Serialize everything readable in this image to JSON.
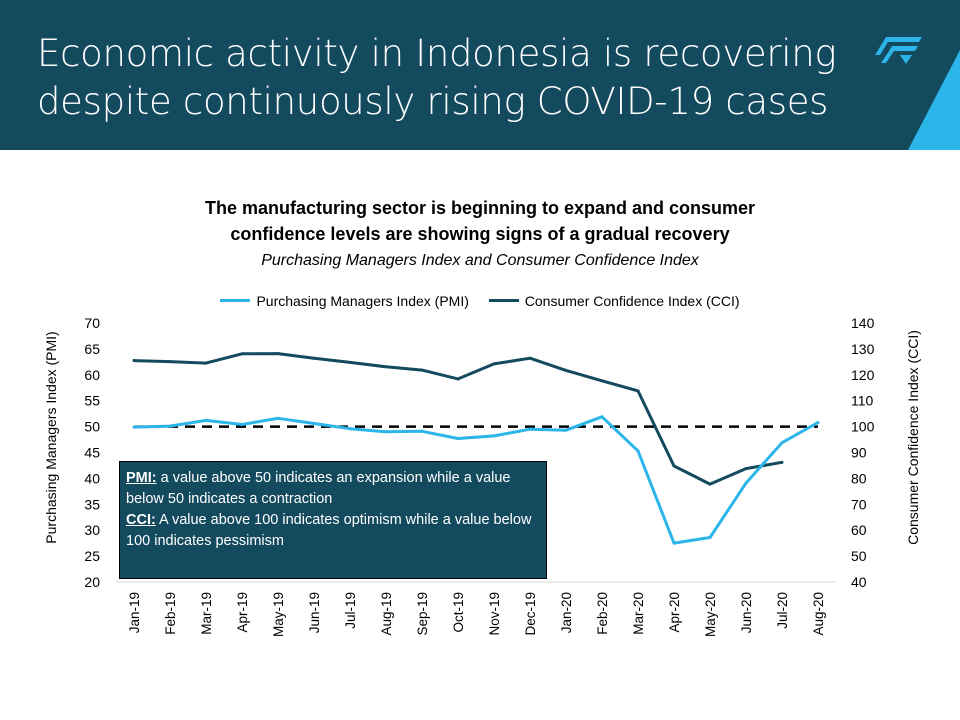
{
  "header": {
    "title_line1": "Economic activity in Indonesia is recovering",
    "title_line2": "despite continuously rising COVID-19 cases",
    "bg_color": "#134a5e",
    "accent_color": "#2bb5e8",
    "logo": "brand-logo"
  },
  "chart_data": {
    "type": "line",
    "title_line1": "The manufacturing sector is beginning to expand and consumer",
    "title_line2": "confidence levels are showing signs of a gradual recovery",
    "subtitle": "Purchasing Managers Index and Consumer Confidence Index",
    "categories": [
      "Jan-19",
      "Feb-19",
      "Mar-19",
      "Apr-19",
      "May-19",
      "Jun-19",
      "Jul-19",
      "Aug-19",
      "Sep-19",
      "Oct-19",
      "Nov-19",
      "Dec-19",
      "Jan-20",
      "Feb-20",
      "Mar-20",
      "Apr-20",
      "May-20",
      "Jun-20",
      "Jul-20",
      "Aug-20"
    ],
    "series": [
      {
        "name": "Purchasing Managers Index (PMI)",
        "axis": "left",
        "color": "#2bb5e8",
        "values": [
          49.9,
          50.1,
          51.2,
          50.4,
          51.6,
          50.6,
          49.6,
          49.0,
          49.1,
          47.7,
          48.2,
          49.5,
          49.3,
          51.9,
          45.3,
          27.5,
          28.6,
          39.1,
          46.9,
          50.8
        ]
      },
      {
        "name": "Consumer Confidence Index (CCI)",
        "axis": "right",
        "color": "#134a5e",
        "values": [
          125.5,
          125.1,
          124.5,
          128.1,
          128.2,
          126.4,
          124.8,
          123.1,
          121.8,
          118.4,
          124.2,
          126.4,
          121.7,
          117.7,
          113.8,
          84.8,
          77.8,
          83.8,
          86.2,
          null
        ]
      }
    ],
    "reference_line": {
      "left_value": 50,
      "right_value": 100,
      "style": "dashed"
    },
    "ylabel_left": "Purchasing Managers Index (PMI)",
    "ylabel_right": "Consumer Confidence Index (CCI)",
    "ylim_left": [
      20,
      70
    ],
    "yticks_left": [
      20,
      25,
      30,
      35,
      40,
      45,
      50,
      55,
      60,
      65,
      70
    ],
    "ylim_right": [
      40,
      140
    ],
    "yticks_right": [
      40,
      50,
      60,
      70,
      80,
      90,
      100,
      110,
      120,
      130,
      140
    ],
    "legend_position": "top",
    "grid": false
  },
  "note": {
    "pmi_label": "PMI:",
    "pmi_text": " a value above 50 indicates an expansion while a value below 50 indicates a contraction",
    "cci_label": "CCI:",
    "cci_text": " A value above 100 indicates optimism while a value below 100 indicates pessimism"
  }
}
